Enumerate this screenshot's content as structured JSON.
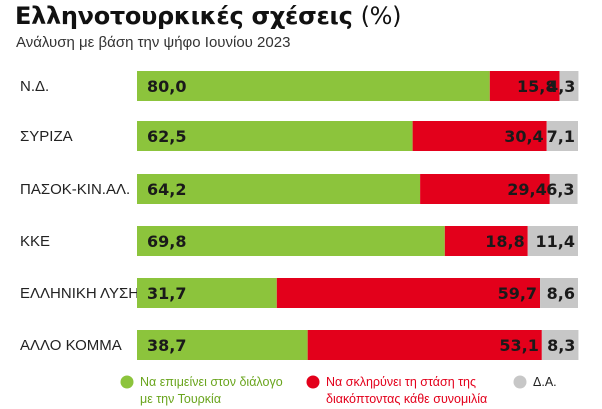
{
  "chart_data": {
    "type": "bar",
    "stacked": true,
    "orientation": "horizontal",
    "title_main": "Ελληνοτουρκικές σχέσεις",
    "title_suffix": "(%)",
    "subtitle": "Ανάλυση με βάση την ψήφο Ιουνίου 2023",
    "categories": [
      "Ν.Δ.",
      "ΣΥΡΙΖΑ",
      "ΠΑΣΟΚ-ΚΙΝ.ΑΛ.",
      "ΚΚΕ",
      "ΕΛΛΗΝΙΚΗ ΛΥΣΗ",
      "ΑΛΛΟ ΚΟΜΜΑ"
    ],
    "series": [
      {
        "key": "dialogue",
        "values": [
          80.0,
          62.5,
          64.2,
          69.8,
          31.7,
          38.7
        ],
        "labels": [
          "80,0",
          "62,5",
          "64,2",
          "69,8",
          "31,7",
          "38,7"
        ],
        "color": "#8cc43c"
      },
      {
        "key": "harden",
        "values": [
          15.8,
          30.4,
          29.4,
          18.8,
          59.7,
          53.1
        ],
        "labels": [
          "15,8",
          "30,4",
          "29,4",
          "18,8",
          "59,7",
          "53,1"
        ],
        "color": "#e3001b"
      },
      {
        "key": "dk",
        "values": [
          4.3,
          7.1,
          6.3,
          11.4,
          8.6,
          8.3
        ],
        "labels": [
          "4,3",
          "7,1",
          "6,3",
          "11,4",
          "8,6",
          "8,3"
        ],
        "color": "#c7c7c7"
      }
    ],
    "legend": [
      {
        "key": "dialogue",
        "lines": [
          "Να επιμείνει στον διάλογο",
          "με την Τουρκία"
        ],
        "color": "#8cc43c",
        "text_color": "#6aa51e"
      },
      {
        "key": "harden",
        "lines": [
          "Να σκληρύνει τη στάση της",
          "διακόπτοντας κάθε συνομιλία"
        ],
        "color": "#e3001b",
        "text_color": "#e3001b"
      },
      {
        "key": "dk",
        "lines": [
          "Δ.Α."
        ],
        "color": "#c7c7c7",
        "text_color": "#222222"
      }
    ],
    "legend_position": "bottom",
    "xlim": [
      0,
      100
    ],
    "grid": false
  }
}
